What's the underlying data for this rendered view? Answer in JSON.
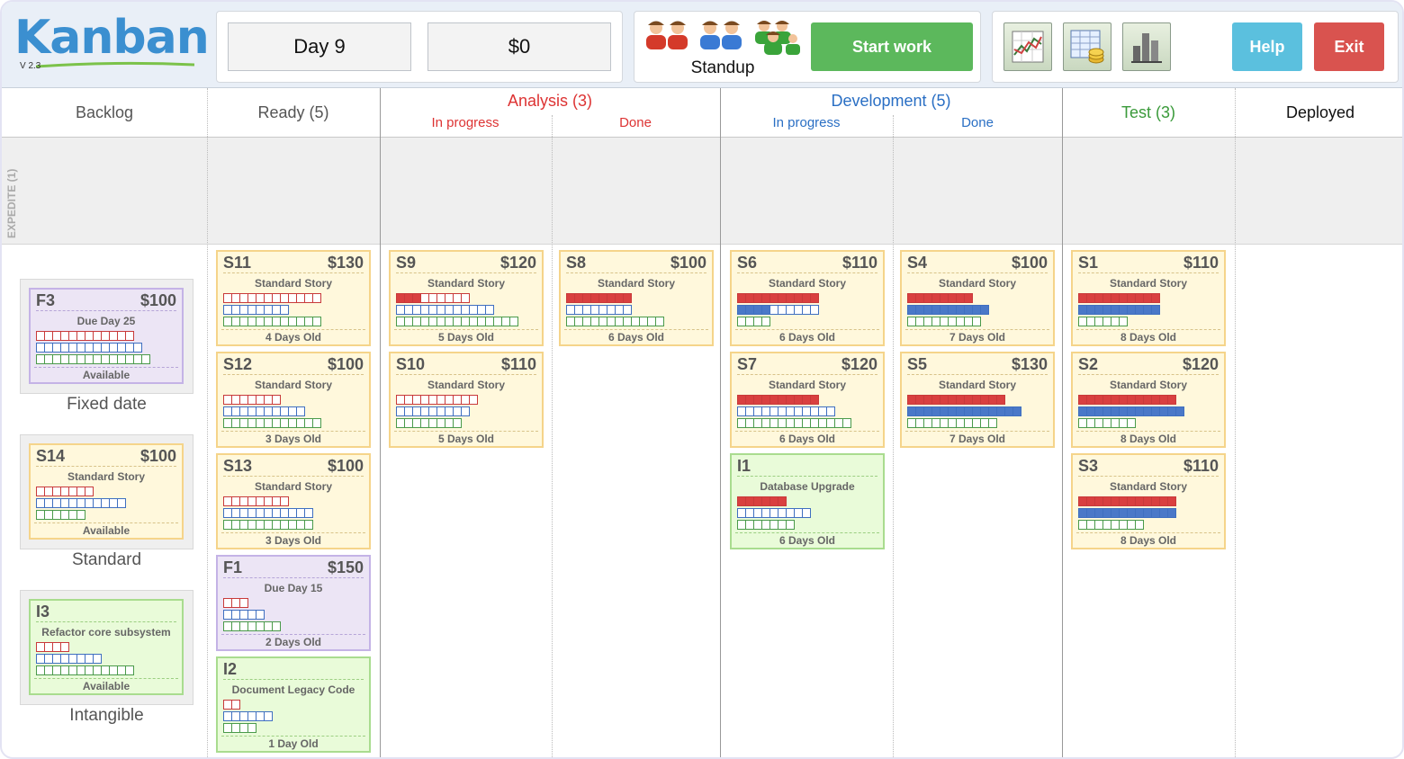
{
  "app": {
    "logo": "Kanban",
    "version": "V 2.3"
  },
  "top": {
    "day": "Day 9",
    "money": "$0",
    "standup": "Standup",
    "start_work": "Start work",
    "help": "Help",
    "exit": "Exit"
  },
  "columns": {
    "backlog": "Backlog",
    "ready": "Ready (5)",
    "analysis": "Analysis (3)",
    "analysis_inprogress": "In progress",
    "analysis_done": "Done",
    "development": "Development (5)",
    "development_inprogress": "In progress",
    "development_done": "Done",
    "test": "Test (3)",
    "deployed": "Deployed"
  },
  "expedite_label": "EXPEDITE (1)",
  "backlog_labels": {
    "fixed": "Fixed date",
    "standard": "Standard",
    "intangible": "Intangible"
  },
  "colors": {
    "red": "#d94040",
    "blue": "#4a78c8",
    "green": "#5aab5a",
    "start": "#5cb85c",
    "help": "#5bc0de",
    "exit": "#d9534f"
  },
  "cards": {
    "f3": {
      "id": "F3",
      "value": "$100",
      "type": "Due Day 25",
      "footer": "Available",
      "bars": [
        [
          0,
          12
        ],
        [
          0,
          13
        ],
        [
          0,
          14
        ]
      ]
    },
    "s14": {
      "id": "S14",
      "value": "$100",
      "type": "Standard Story",
      "footer": "Available",
      "bars": [
        [
          0,
          7
        ],
        [
          0,
          11
        ],
        [
          0,
          6
        ]
      ]
    },
    "i3": {
      "id": "I3",
      "value": "",
      "type": "Refactor core subsystem",
      "footer": "Available",
      "bars": [
        [
          0,
          4
        ],
        [
          0,
          8
        ],
        [
          0,
          12
        ]
      ]
    },
    "s11": {
      "id": "S11",
      "value": "$130",
      "type": "Standard Story",
      "footer": "4 Days Old",
      "bars": [
        [
          0,
          12
        ],
        [
          0,
          8
        ],
        [
          0,
          12
        ]
      ]
    },
    "s12": {
      "id": "S12",
      "value": "$100",
      "type": "Standard Story",
      "footer": "3 Days Old",
      "bars": [
        [
          0,
          7
        ],
        [
          0,
          10
        ],
        [
          0,
          12
        ]
      ]
    },
    "s13": {
      "id": "S13",
      "value": "$100",
      "type": "Standard Story",
      "footer": "3 Days Old",
      "bars": [
        [
          0,
          8
        ],
        [
          0,
          11
        ],
        [
          0,
          11
        ]
      ]
    },
    "f1": {
      "id": "F1",
      "value": "$150",
      "type": "Due Day 15",
      "footer": "2 Days Old",
      "bars": [
        [
          0,
          3
        ],
        [
          0,
          5
        ],
        [
          0,
          7
        ]
      ]
    },
    "i2": {
      "id": "I2",
      "value": "",
      "type": "Document Legacy Code",
      "footer": "1 Day Old",
      "bars": [
        [
          0,
          2
        ],
        [
          0,
          6
        ],
        [
          0,
          4
        ]
      ]
    },
    "s9": {
      "id": "S9",
      "value": "$120",
      "type": "Standard Story",
      "footer": "5 Days Old",
      "bars": [
        [
          3,
          9
        ],
        [
          0,
          12
        ],
        [
          0,
          15
        ]
      ]
    },
    "s10": {
      "id": "S10",
      "value": "$110",
      "type": "Standard Story",
      "footer": "5 Days Old",
      "bars": [
        [
          0,
          10
        ],
        [
          0,
          9
        ],
        [
          0,
          8
        ]
      ]
    },
    "s8": {
      "id": "S8",
      "value": "$100",
      "type": "Standard Story",
      "footer": "6 Days Old",
      "bars": [
        [
          8,
          8
        ],
        [
          0,
          8
        ],
        [
          0,
          12
        ]
      ]
    },
    "s6": {
      "id": "S6",
      "value": "$110",
      "type": "Standard Story",
      "footer": "6 Days Old",
      "bars": [
        [
          10,
          10
        ],
        [
          4,
          10
        ],
        [
          0,
          4
        ]
      ]
    },
    "s7": {
      "id": "S7",
      "value": "$120",
      "type": "Standard Story",
      "footer": "6 Days Old",
      "bars": [
        [
          10,
          10
        ],
        [
          0,
          12
        ],
        [
          0,
          14
        ]
      ]
    },
    "i1": {
      "id": "I1",
      "value": "",
      "type": "Database Upgrade",
      "footer": "6 Days Old",
      "bars": [
        [
          6,
          6
        ],
        [
          0,
          9
        ],
        [
          0,
          7
        ]
      ]
    },
    "s4": {
      "id": "S4",
      "value": "$100",
      "type": "Standard Story",
      "footer": "7 Days Old",
      "bars": [
        [
          8,
          8
        ],
        [
          10,
          10
        ],
        [
          0,
          9
        ]
      ]
    },
    "s5": {
      "id": "S5",
      "value": "$130",
      "type": "Standard Story",
      "footer": "7 Days Old",
      "bars": [
        [
          12,
          12
        ],
        [
          14,
          14
        ],
        [
          0,
          11
        ]
      ]
    },
    "s1": {
      "id": "S1",
      "value": "$110",
      "type": "Standard Story",
      "footer": "8 Days Old",
      "bars": [
        [
          10,
          10
        ],
        [
          10,
          10
        ],
        [
          0,
          6
        ]
      ]
    },
    "s2": {
      "id": "S2",
      "value": "$120",
      "type": "Standard Story",
      "footer": "8 Days Old",
      "bars": [
        [
          12,
          12
        ],
        [
          13,
          13
        ],
        [
          0,
          7
        ]
      ]
    },
    "s3": {
      "id": "S3",
      "value": "$110",
      "type": "Standard Story",
      "footer": "8 Days Old",
      "bars": [
        [
          12,
          12
        ],
        [
          12,
          12
        ],
        [
          0,
          8
        ]
      ]
    }
  }
}
